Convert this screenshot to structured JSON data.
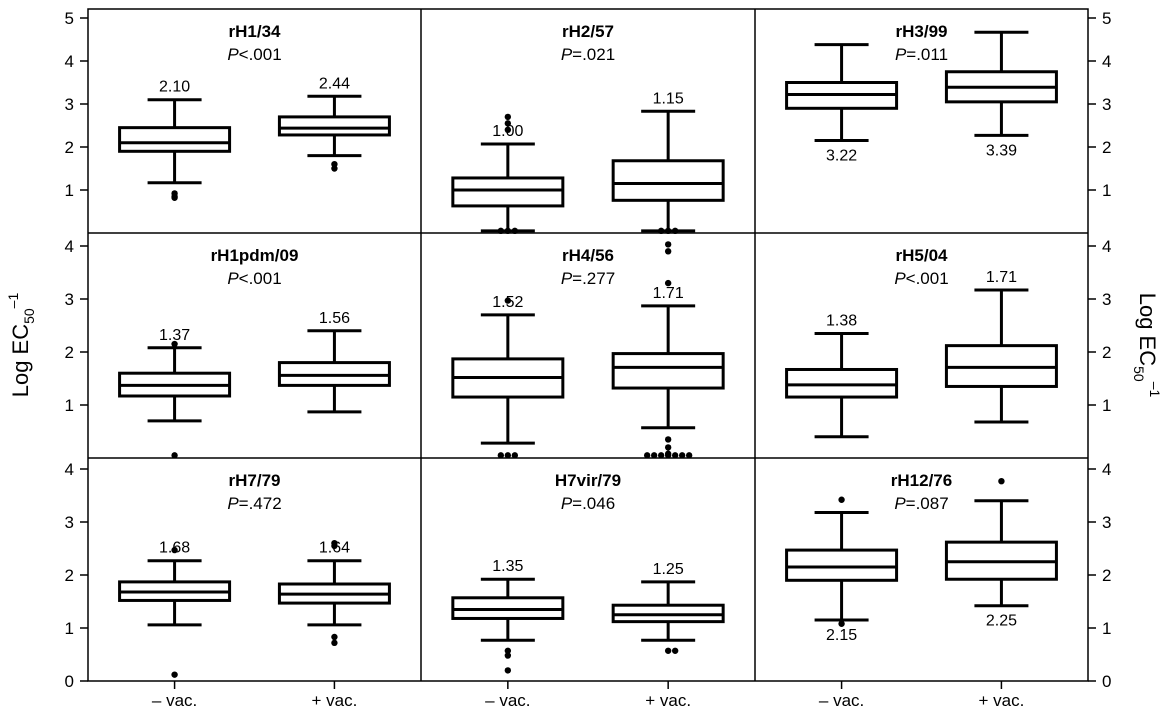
{
  "chart_data": {
    "type": "boxplot",
    "ylabel_left": "Log EC50⁻¹",
    "ylabel_right": "Log EC50⁻¹",
    "x_categories": [
      "– vac.",
      "+ vac."
    ],
    "rows": [
      {
        "ylim": [
          0,
          5
        ],
        "yticks": [
          1,
          2,
          3,
          4,
          5
        ]
      },
      {
        "ylim": [
          0,
          4
        ],
        "yticks": [
          1,
          2,
          3,
          4
        ]
      },
      {
        "ylim": [
          0,
          4
        ],
        "yticks": [
          0,
          1,
          2,
          3,
          4
        ]
      }
    ],
    "panels": [
      {
        "title": "rH1/34",
        "p_label": "P",
        "p_value": "<.001",
        "boxes": [
          {
            "group": "– vac.",
            "whisker_low": 1.17,
            "q1": 1.9,
            "median": 2.1,
            "q3": 2.45,
            "whisker_high": 3.1,
            "outliers": [
              0.92,
              0.85,
              0.82
            ],
            "label": "2.10",
            "label_pos": "above"
          },
          {
            "group": "+ vac.",
            "whisker_low": 1.8,
            "q1": 2.28,
            "median": 2.44,
            "q3": 2.7,
            "whisker_high": 3.18,
            "outliers": [
              1.6,
              1.5
            ],
            "label": "2.44",
            "label_pos": "above"
          }
        ]
      },
      {
        "title": "rH2/57",
        "p_label": "P",
        "p_value": "=.021",
        "boxes": [
          {
            "group": "– vac.",
            "whisker_low": 0.05,
            "q1": 0.63,
            "median": 1.0,
            "q3": 1.28,
            "whisker_high": 2.07,
            "outliers": [
              2.4,
              2.55,
              2.7,
              0.05,
              0.05,
              0.05
            ],
            "label": "1.00",
            "label_pos": "above"
          },
          {
            "group": "+ vac.",
            "whisker_low": 0.05,
            "q1": 0.76,
            "median": 1.15,
            "q3": 1.68,
            "whisker_high": 2.83,
            "outliers": [
              0.05,
              0.05,
              0.05
            ],
            "label": "1.15",
            "label_pos": "above"
          }
        ]
      },
      {
        "title": "rH3/99",
        "p_label": "P",
        "p_value": "=.011",
        "boxes": [
          {
            "group": "– vac.",
            "whisker_low": 2.15,
            "q1": 2.9,
            "median": 3.22,
            "q3": 3.5,
            "whisker_high": 4.38,
            "outliers": [],
            "label": "3.22",
            "label_pos": "below"
          },
          {
            "group": "+ vac.",
            "whisker_low": 2.27,
            "q1": 3.05,
            "median": 3.39,
            "q3": 3.75,
            "whisker_high": 4.67,
            "outliers": [],
            "label": "3.39",
            "label_pos": "below"
          }
        ]
      },
      {
        "title": "rH1pdm/09",
        "p_label": "P",
        "p_value": "<.001",
        "boxes": [
          {
            "group": "– vac.",
            "whisker_low": 0.7,
            "q1": 1.17,
            "median": 1.37,
            "q3": 1.6,
            "whisker_high": 2.08,
            "outliers": [
              2.15,
              0.05
            ],
            "label": "1.37",
            "label_pos": "above"
          },
          {
            "group": "+ vac.",
            "whisker_low": 0.87,
            "q1": 1.37,
            "median": 1.56,
            "q3": 1.8,
            "whisker_high": 2.4,
            "outliers": [],
            "label": "1.56",
            "label_pos": "above"
          }
        ]
      },
      {
        "title": "rH4/56",
        "p_label": "P",
        "p_value": "=.277",
        "boxes": [
          {
            "group": "– vac.",
            "whisker_low": 0.28,
            "q1": 1.15,
            "median": 1.52,
            "q3": 1.87,
            "whisker_high": 2.7,
            "outliers": [
              2.97,
              0.05,
              0.05,
              0.05
            ],
            "label": "1.52",
            "label_pos": "above"
          },
          {
            "group": "+ vac.",
            "whisker_low": 0.57,
            "q1": 1.32,
            "median": 1.71,
            "q3": 1.97,
            "whisker_high": 2.87,
            "outliers": [
              3.3,
              3.9,
              4.03,
              0.35,
              0.2,
              0.05,
              0.05,
              0.05,
              0.05,
              0.05,
              0.05,
              0.05,
              0.08
            ],
            "label": "1.71",
            "label_pos": "above"
          }
        ]
      },
      {
        "title": "rH5/04",
        "p_label": "P",
        "p_value": "<.001",
        "boxes": [
          {
            "group": "– vac.",
            "whisker_low": 0.4,
            "q1": 1.15,
            "median": 1.38,
            "q3": 1.67,
            "whisker_high": 2.35,
            "outliers": [],
            "label": "1.38",
            "label_pos": "above"
          },
          {
            "group": "+ vac.",
            "whisker_low": 0.68,
            "q1": 1.35,
            "median": 1.71,
            "q3": 2.12,
            "whisker_high": 3.17,
            "outliers": [],
            "label": "1.71",
            "label_pos": "above"
          }
        ]
      },
      {
        "title": "rH7/79",
        "p_label": "P",
        "p_value": "=.472",
        "boxes": [
          {
            "group": "– vac.",
            "whisker_low": 1.06,
            "q1": 1.52,
            "median": 1.68,
            "q3": 1.87,
            "whisker_high": 2.27,
            "outliers": [
              2.47,
              0.12
            ],
            "label": "1.68",
            "label_pos": "above"
          },
          {
            "group": "+ vac.",
            "whisker_low": 1.06,
            "q1": 1.47,
            "median": 1.64,
            "q3": 1.83,
            "whisker_high": 2.27,
            "outliers": [
              2.55,
              2.6,
              0.83,
              0.72
            ],
            "label": "1.64",
            "label_pos": "above"
          }
        ]
      },
      {
        "title": "H7vir/79",
        "p_label": "P",
        "p_value": "=.046",
        "boxes": [
          {
            "group": "– vac.",
            "whisker_low": 0.77,
            "q1": 1.18,
            "median": 1.35,
            "q3": 1.57,
            "whisker_high": 1.92,
            "outliers": [
              0.57,
              0.48,
              0.2
            ],
            "label": "1.35",
            "label_pos": "above"
          },
          {
            "group": "+ vac.",
            "whisker_low": 0.77,
            "q1": 1.12,
            "median": 1.25,
            "q3": 1.43,
            "whisker_high": 1.87,
            "outliers": [
              0.57,
              0.57
            ],
            "label": "1.25",
            "label_pos": "above"
          }
        ]
      },
      {
        "title": "rH12/76",
        "p_label": "P",
        "p_value": "=.087",
        "boxes": [
          {
            "group": "– vac.",
            "whisker_low": 1.15,
            "q1": 1.9,
            "median": 2.15,
            "q3": 2.47,
            "whisker_high": 3.18,
            "outliers": [
              3.42,
              1.08
            ],
            "label": "2.15",
            "label_pos": "below"
          },
          {
            "group": "+ vac.",
            "whisker_low": 1.42,
            "q1": 1.92,
            "median": 2.25,
            "q3": 2.62,
            "whisker_high": 3.4,
            "outliers": [
              3.77
            ],
            "label": "2.25",
            "label_pos": "below"
          }
        ]
      }
    ]
  }
}
